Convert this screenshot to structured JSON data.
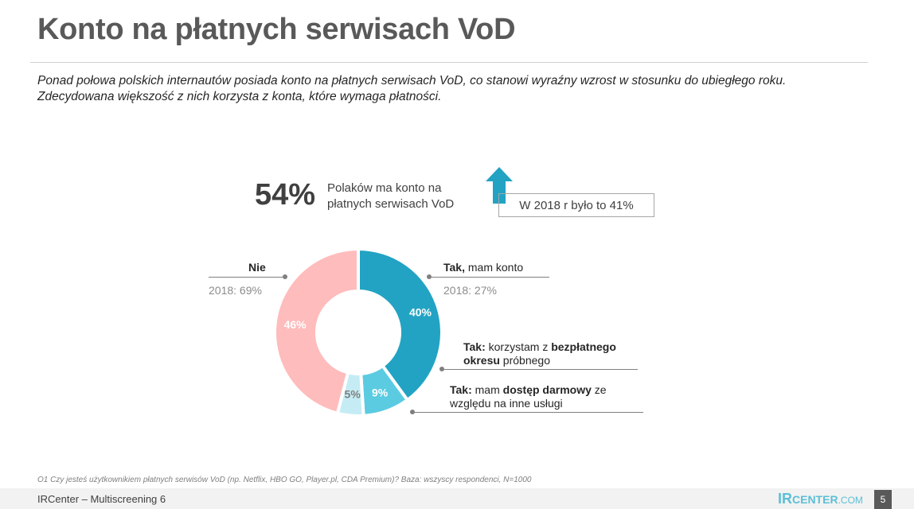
{
  "title": "Konto na płatnych serwisach VoD",
  "subtitle_line1": "Ponad połowa polskich internautów posiada konto na płatnych serwisach VoD, co stanowi wyraźny wzrost w stosunku do ubiegłego roku.",
  "subtitle_line2": "Zdecydowana większość z nich korzysta z konta, które wymaga płatności.",
  "headline": {
    "value": "54%",
    "desc_line1": "Polaków ma konto na",
    "desc_line2": "płatnych serwisach VoD",
    "previous": "W 2018 r było to 41%"
  },
  "labels": {
    "nie": "Nie",
    "nie_2018": "2018: 69%",
    "tak_konto_bold": "Tak,",
    "tak_konto_rest": " mam konto",
    "tak_konto_2018": "2018: 27%",
    "bezplatny_b1": "Tak:",
    "bezplatny_t1": " korzystam z ",
    "bezplatny_b2": "bezpłatnego",
    "bezplatny_b3": "okresu",
    "bezplatny_t2": " próbnego",
    "darmowy_b1": "Tak:",
    "darmowy_t1": " mam ",
    "darmowy_b2": "dostęp darmowy",
    "darmowy_t2": " ze",
    "darmowy_line2": "względu na inne usługi"
  },
  "chart_data": {
    "type": "pie",
    "variant": "donut",
    "categories": [
      "Tak, mam konto",
      "Tak: korzystam z bezpłatnego okresu próbnego",
      "Tak: mam dostęp darmowy ze względu na inne usługi",
      "Nie"
    ],
    "values": [
      40,
      9,
      5,
      46
    ],
    "labels": [
      "40%",
      "9%",
      "5%",
      "46%"
    ],
    "colors": [
      "#22a3c3",
      "#5bcbe2",
      "#c5ecf4",
      "#ffbcbc"
    ],
    "label_colors": [
      "#ffffff",
      "#ffffff",
      "#7f7f7f",
      "#ffffff"
    ]
  },
  "footnote": "O1 Czy jesteś użytkownikiem płatnych serwisów VoD (np. Netflix, HBO GO, Player.pl, CDA Premium)? Baza: wszyscy respondenci, N=1000",
  "footer": {
    "text": "IRCenter – Multiscreening 6",
    "logo_ir": "IR",
    "logo_center": "CENTER",
    "logo_com": ".COM",
    "page": "5"
  }
}
